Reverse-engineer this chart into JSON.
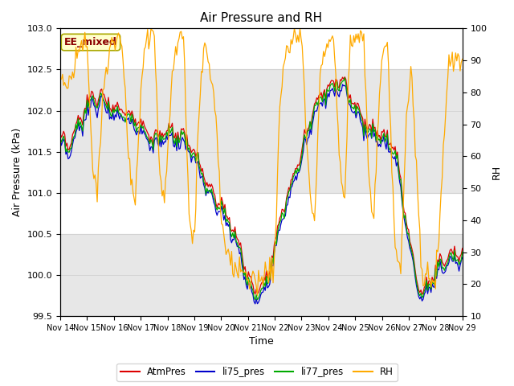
{
  "title": "Air Pressure and RH",
  "xlabel": "Time",
  "ylabel_left": "Air Pressure (kPa)",
  "ylabel_right": "RH",
  "annotation": "EE_mixed",
  "ylim_left": [
    99.5,
    103.0
  ],
  "ylim_right": [
    10,
    100
  ],
  "yticks_left": [
    99.5,
    100.0,
    100.5,
    101.0,
    101.5,
    102.0,
    102.5,
    103.0
  ],
  "yticks_right": [
    10,
    20,
    30,
    40,
    50,
    60,
    70,
    80,
    90,
    100
  ],
  "xtick_labels": [
    "Nov 14",
    "Nov 15",
    "Nov 16",
    "Nov 17",
    "Nov 18",
    "Nov 19",
    "Nov 20",
    "Nov 21",
    "Nov 22",
    "Nov 23",
    "Nov 24",
    "Nov 25",
    "Nov 26",
    "Nov 27",
    "Nov 28",
    "Nov 29"
  ],
  "colors": {
    "AtmPres": "#dd0000",
    "li75_pres": "#0000cc",
    "li77_pres": "#00aa00",
    "RH": "#ffaa00"
  },
  "bg_band1": [
    101.0,
    102.5
  ],
  "bg_band2": [
    99.5,
    100.5
  ],
  "title_fontsize": 11,
  "axis_fontsize": 9,
  "tick_fontsize": 8
}
